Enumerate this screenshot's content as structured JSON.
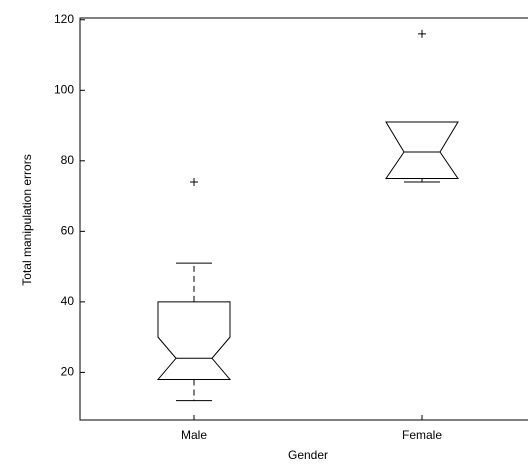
{
  "chart_data": {
    "type": "box",
    "x_label": "Gender",
    "y_label": "Total manipulation errors",
    "categories": [
      "Male",
      "Female"
    ],
    "boxes": [
      {
        "whisker_low": 12,
        "q1": 18,
        "notch_low": 18,
        "median": 24,
        "notch_high": 30,
        "q3": 40,
        "whisker_high": 51,
        "outliers": [
          74
        ]
      },
      {
        "whisker_low": 74,
        "q1": 75,
        "notch_low": 75,
        "median": 82.5,
        "notch_high": 91,
        "q3": 91,
        "whisker_high": 91,
        "outliers": [
          116
        ]
      }
    ],
    "color": "#000000",
    "ylim": [
      6.5,
      120.5
    ],
    "yticks": [
      20,
      40,
      60,
      80,
      100,
      120
    ]
  }
}
